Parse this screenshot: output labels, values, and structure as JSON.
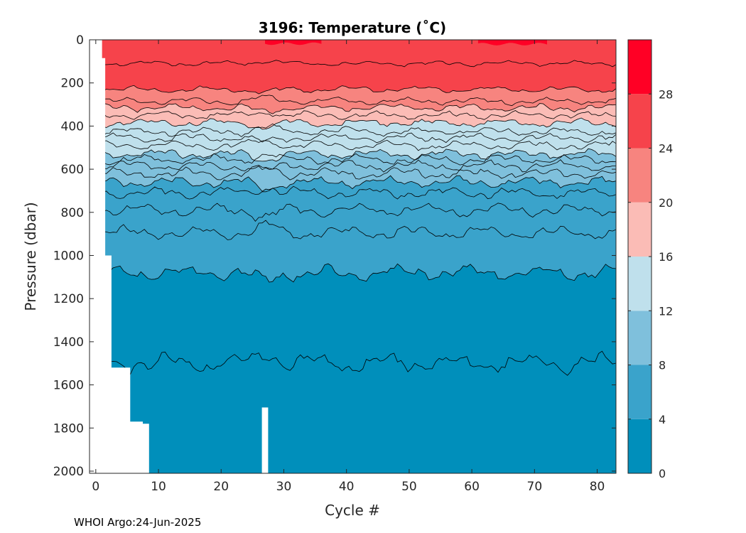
{
  "chart_data": {
    "type": "heatmap",
    "title": "3196:  Temperature (˚C)",
    "xlabel": "Cycle #",
    "ylabel": "Pressure (dbar)",
    "xlim": [
      -1,
      83
    ],
    "ylim": [
      2010,
      0
    ],
    "x_ticks": [
      0,
      10,
      20,
      30,
      40,
      50,
      60,
      70,
      80
    ],
    "y_ticks": [
      0,
      200,
      400,
      600,
      800,
      1000,
      1200,
      1400,
      1600,
      1800,
      2000
    ],
    "colorbar": {
      "levels": [
        0,
        4,
        8,
        12,
        16,
        20,
        24,
        28,
        32
      ],
      "tick_labels": [
        4,
        8,
        12,
        16,
        20,
        24,
        28
      ],
      "colors": [
        "#008fbb",
        "#3aa3cb",
        "#7fc0dc",
        "#bfe0ec",
        "#fbbcb6",
        "#f7847f",
        "#f6434b",
        "#ff0025"
      ]
    },
    "max_pressure_by_cycle": [
      [
        1,
        85
      ],
      [
        2,
        1000
      ],
      [
        3,
        1520
      ],
      [
        5,
        1520
      ],
      [
        6,
        1770
      ],
      [
        8,
        1780
      ],
      [
        9,
        2010
      ],
      [
        26,
        2010
      ],
      [
        27,
        1705
      ],
      [
        28,
        2010
      ],
      [
        83,
        2010
      ]
    ],
    "contour_depths": [
      {
        "level": 26,
        "mean_depth": 110
      },
      {
        "level": 24,
        "mean_depth": 230
      },
      {
        "level": 22,
        "mean_depth": 285
      },
      {
        "level": 20,
        "mean_depth": 315
      },
      {
        "level": 18,
        "mean_depth": 350
      },
      {
        "level": 16,
        "mean_depth": 385
      },
      {
        "level": 15,
        "mean_depth": 425
      },
      {
        "level": 14,
        "mean_depth": 455
      },
      {
        "level": 13,
        "mean_depth": 490
      },
      {
        "level": 12,
        "mean_depth": 530
      },
      {
        "level": 11,
        "mean_depth": 555
      },
      {
        "level": 10,
        "mean_depth": 585
      },
      {
        "level": 9,
        "mean_depth": 620
      },
      {
        "level": 8,
        "mean_depth": 660
      },
      {
        "level": 7,
        "mean_depth": 710
      },
      {
        "level": 6,
        "mean_depth": 790
      },
      {
        "level": 5,
        "mean_depth": 895
      },
      {
        "level": 4,
        "mean_depth": 1080
      },
      {
        "level": 3,
        "mean_depth": 1500
      }
    ]
  },
  "footer": {
    "text": "WHOI Argo:24-Jun-2025"
  }
}
